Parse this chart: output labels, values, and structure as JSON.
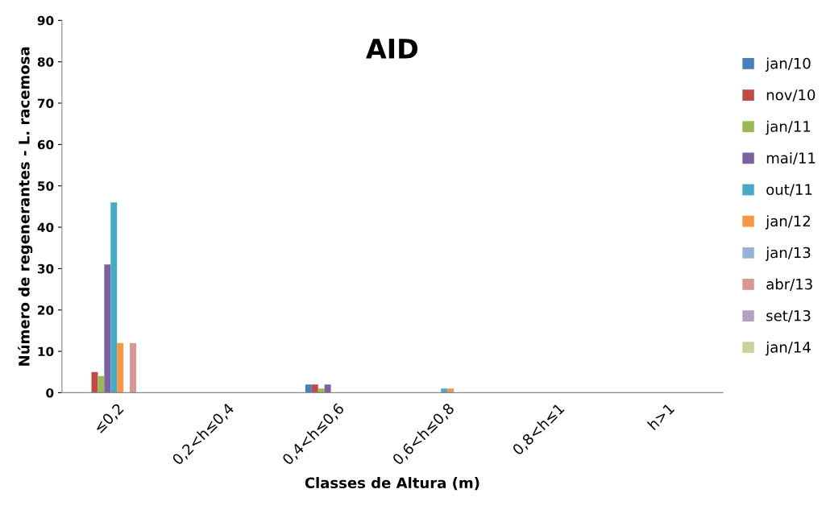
{
  "chart_data": {
    "type": "bar",
    "title": "AID",
    "xlabel": "Classes de Altura (m)",
    "ylabel": "Número de regenerantes - L. racemosa",
    "categories": [
      "≤0,2",
      "0,2<h≤0,4",
      "0,4<h≤0,6",
      "0,6<h≤0,8",
      "0,8<h≤1",
      "h>1"
    ],
    "series": [
      {
        "name": "jan/10",
        "color": "#4a7ebb",
        "values": [
          0,
          0,
          2,
          0,
          0,
          0
        ]
      },
      {
        "name": "nov/10",
        "color": "#be4b48",
        "values": [
          5,
          0,
          2,
          0,
          0,
          0
        ]
      },
      {
        "name": "jan/11",
        "color": "#98b954",
        "values": [
          4,
          0,
          1,
          0,
          0,
          0
        ]
      },
      {
        "name": "mai/11",
        "color": "#7d60a0",
        "values": [
          31,
          0,
          2,
          0,
          0,
          0
        ]
      },
      {
        "name": "out/11",
        "color": "#46aac5",
        "values": [
          46,
          0,
          0,
          1,
          0,
          0
        ]
      },
      {
        "name": "jan/12",
        "color": "#f79646",
        "values": [
          12,
          0,
          0,
          1,
          0,
          0
        ]
      },
      {
        "name": "jan/13",
        "color": "#95b3d7",
        "values": [
          0,
          0,
          0,
          0,
          0,
          0
        ]
      },
      {
        "name": "abr/13",
        "color": "#d99694",
        "values": [
          12,
          0,
          0,
          0,
          0,
          0
        ]
      },
      {
        "name": "set/13",
        "color": "#b3a2c7",
        "values": [
          0,
          0,
          0,
          0,
          0,
          0
        ]
      },
      {
        "name": "jan/14",
        "color": "#c3d69b",
        "values": [
          0,
          0,
          0,
          0,
          0,
          0
        ]
      }
    ],
    "ylim": [
      0,
      90
    ],
    "yticks": [
      0,
      10,
      20,
      30,
      40,
      50,
      60,
      70,
      80,
      90
    ],
    "grid": false,
    "legend": "right"
  }
}
